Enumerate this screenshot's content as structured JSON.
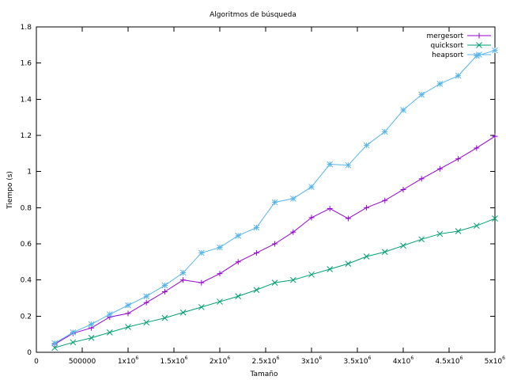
{
  "chart_data": {
    "type": "line",
    "title": "Algoritmos de búsqueda",
    "xlabel": "Tamaño",
    "ylabel": "Tiempo (s)",
    "xlim": [
      0,
      5000000
    ],
    "ylim": [
      0,
      1.8
    ],
    "grid": false,
    "legend_position": "top-right",
    "x_ticks": [
      {
        "value": 0,
        "label": "0",
        "exp": ""
      },
      {
        "value": 500000,
        "label": "500000",
        "exp": ""
      },
      {
        "value": 1000000,
        "label": "1x10",
        "exp": "6"
      },
      {
        "value": 1500000,
        "label": "1.5x10",
        "exp": "6"
      },
      {
        "value": 2000000,
        "label": "2x10",
        "exp": "6"
      },
      {
        "value": 2500000,
        "label": "2.5x10",
        "exp": "6"
      },
      {
        "value": 3000000,
        "label": "3x10",
        "exp": "6"
      },
      {
        "value": 3500000,
        "label": "3.5x10",
        "exp": "6"
      },
      {
        "value": 4000000,
        "label": "4x10",
        "exp": "6"
      },
      {
        "value": 4500000,
        "label": "4.5x10",
        "exp": "6"
      },
      {
        "value": 5000000,
        "label": "5x10",
        "exp": "6"
      }
    ],
    "y_ticks": [
      {
        "value": 0,
        "label": "0"
      },
      {
        "value": 0.2,
        "label": "0.2"
      },
      {
        "value": 0.4,
        "label": "0.4"
      },
      {
        "value": 0.6,
        "label": "0.6"
      },
      {
        "value": 0.8,
        "label": "0.8"
      },
      {
        "value": 1.0,
        "label": "1"
      },
      {
        "value": 1.2,
        "label": "1.2"
      },
      {
        "value": 1.4,
        "label": "1.4"
      },
      {
        "value": 1.6,
        "label": "1.6"
      },
      {
        "value": 1.8,
        "label": "1.8"
      }
    ],
    "x": [
      200000,
      400000,
      600000,
      800000,
      1000000,
      1200000,
      1400000,
      1600000,
      1800000,
      2000000,
      2200000,
      2400000,
      2600000,
      2800000,
      3000000,
      3200000,
      3400000,
      3600000,
      3800000,
      4000000,
      4200000,
      4400000,
      4600000,
      4800000,
      5000000
    ],
    "series": [
      {
        "name": "mergesort",
        "color": "#9400d3",
        "marker": "plus",
        "values": [
          0.045,
          0.105,
          0.135,
          0.195,
          0.215,
          0.275,
          0.335,
          0.4,
          0.385,
          0.435,
          0.5,
          0.55,
          0.6,
          0.665,
          0.745,
          0.795,
          0.74,
          0.8,
          0.84,
          0.9,
          0.96,
          1.015,
          1.07,
          1.13,
          1.195
        ]
      },
      {
        "name": "quicksort",
        "color": "#009e73",
        "marker": "cross",
        "values": [
          0.025,
          0.055,
          0.08,
          0.11,
          0.14,
          0.165,
          0.19,
          0.22,
          0.25,
          0.28,
          0.31,
          0.345,
          0.385,
          0.4,
          0.43,
          0.46,
          0.49,
          0.53,
          0.555,
          0.59,
          0.625,
          0.655,
          0.67,
          0.7,
          0.74
        ]
      },
      {
        "name": "heapsort",
        "color": "#56b4e9",
        "marker": "star",
        "values": [
          0.05,
          0.11,
          0.155,
          0.21,
          0.26,
          0.31,
          0.37,
          0.44,
          0.55,
          0.58,
          0.645,
          0.69,
          0.83,
          0.85,
          0.915,
          1.04,
          1.035,
          1.145,
          1.22,
          1.34,
          1.425,
          1.485,
          1.53,
          1.64,
          1.67
        ]
      }
    ]
  }
}
